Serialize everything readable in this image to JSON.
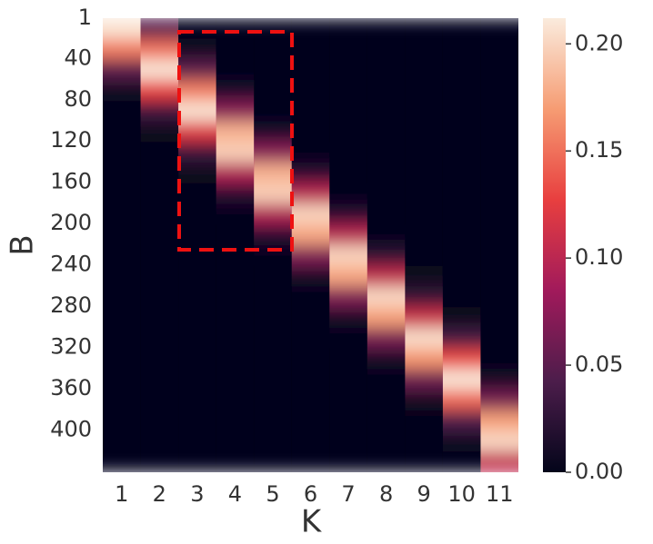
{
  "chart_data": {
    "type": "heatmap",
    "x_label": "K",
    "y_label": "B",
    "categories": [
      1,
      2,
      3,
      4,
      5,
      6,
      7,
      8,
      9,
      10,
      11
    ],
    "ybins": [
      1,
      21,
      41,
      61,
      81,
      101,
      121,
      141,
      161,
      181,
      201,
      221,
      241,
      261,
      281,
      301,
      321,
      341,
      361,
      381,
      401,
      421,
      441
    ],
    "ylim": [
      1,
      441
    ],
    "yticks": [
      1,
      40,
      80,
      120,
      160,
      200,
      240,
      280,
      320,
      360,
      400
    ],
    "z": [
      [
        0.208,
        0.048,
        0,
        0,
        0,
        0,
        0,
        0,
        0,
        0,
        0
      ],
      [
        0.156,
        0.15,
        0.007,
        0,
        0,
        0,
        0,
        0,
        0,
        0,
        0
      ],
      [
        0.05,
        0.209,
        0.05,
        0.001,
        0,
        0,
        0,
        0,
        0,
        0,
        0
      ],
      [
        0.007,
        0.127,
        0.156,
        0.013,
        0,
        0,
        0,
        0,
        0,
        0,
        0
      ],
      [
        0,
        0.034,
        0.208,
        0.073,
        0.001,
        0,
        0,
        0,
        0,
        0,
        0
      ],
      [
        0,
        0.004,
        0.122,
        0.181,
        0.013,
        0,
        0,
        0,
        0,
        0,
        0
      ],
      [
        0,
        0,
        0.031,
        0.197,
        0.073,
        0.002,
        0,
        0,
        0,
        0,
        0
      ],
      [
        0,
        0,
        0.004,
        0.094,
        0.181,
        0.021,
        0,
        0,
        0,
        0,
        0
      ],
      [
        0,
        0,
        0,
        0.02,
        0.197,
        0.099,
        0.002,
        0,
        0,
        0,
        0
      ],
      [
        0,
        0,
        0,
        0.002,
        0.094,
        0.2,
        0.021,
        0,
        0,
        0,
        0
      ],
      [
        0,
        0,
        0,
        0,
        0.02,
        0.175,
        0.099,
        0.002,
        0,
        0,
        0
      ],
      [
        0,
        0,
        0,
        0,
        0.002,
        0.068,
        0.2,
        0.023,
        0,
        0,
        0
      ],
      [
        0,
        0,
        0,
        0,
        0,
        0.012,
        0.175,
        0.104,
        0.003,
        0,
        0
      ],
      [
        0,
        0,
        0,
        0,
        0,
        0.001,
        0.068,
        0.202,
        0.026,
        0,
        0
      ],
      [
        0,
        0,
        0,
        0,
        0,
        0,
        0.012,
        0.172,
        0.11,
        0.004,
        0
      ],
      [
        0,
        0,
        0,
        0,
        0,
        0,
        0.001,
        0.064,
        0.205,
        0.037,
        0
      ],
      [
        0,
        0,
        0,
        0,
        0,
        0,
        0,
        0.011,
        0.167,
        0.132,
        0.001
      ],
      [
        0,
        0,
        0,
        0,
        0,
        0,
        0,
        0.001,
        0.059,
        0.21,
        0.011
      ],
      [
        0,
        0,
        0,
        0,
        0,
        0,
        0,
        0,
        0.009,
        0.145,
        0.064
      ],
      [
        0,
        0,
        0,
        0,
        0,
        0,
        0,
        0,
        0,
        0.043,
        0.172
      ],
      [
        0,
        0,
        0,
        0,
        0,
        0,
        0,
        0,
        0,
        0.006,
        0.202
      ],
      [
        0,
        0,
        0,
        0,
        0,
        0,
        0,
        0,
        0,
        0,
        0.104
      ]
    ],
    "zlim": [
      0,
      0.212
    ],
    "zticks": [
      {
        "value": 0,
        "label": "0.00"
      },
      {
        "value": 0.05,
        "label": "0.05"
      },
      {
        "value": 0.1,
        "label": "0.10"
      },
      {
        "value": 0.15,
        "label": "0.15"
      },
      {
        "value": 0.2,
        "label": "0.20"
      }
    ],
    "colormap": [
      "#03051a",
      "#4c1d4b",
      "#a11a5b",
      "#e83f3f",
      "#f69c73",
      "#faebdd"
    ]
  }
}
